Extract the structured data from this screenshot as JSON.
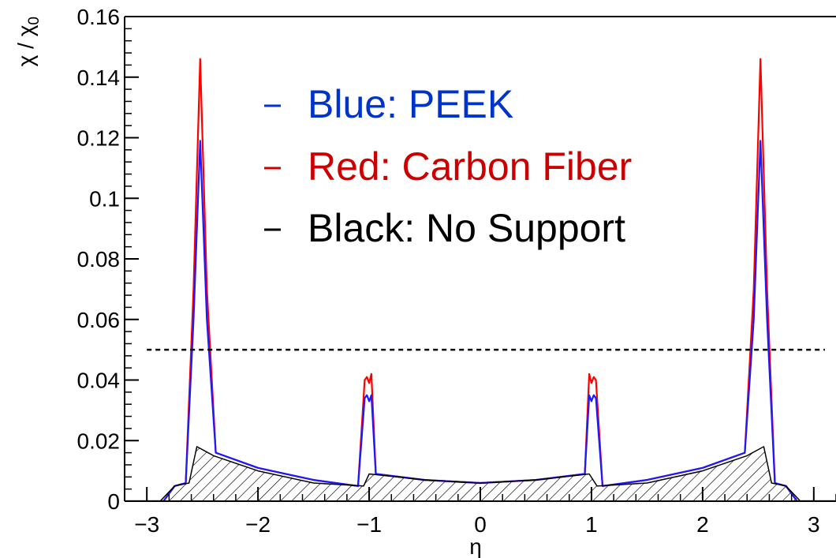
{
  "chart_data": {
    "type": "line",
    "xlabel": "η",
    "ylabel_main": "χ / χ",
    "ylabel_sub": "0",
    "xlim": [
      -3.2,
      3.2
    ],
    "ylim": [
      0,
      0.16
    ],
    "x_ticks": [
      {
        "value": -3,
        "label": "−3"
      },
      {
        "value": -2,
        "label": "−2"
      },
      {
        "value": -1,
        "label": "−1"
      },
      {
        "value": 0,
        "label": "0"
      },
      {
        "value": 1,
        "label": "1"
      },
      {
        "value": 2,
        "label": "2"
      },
      {
        "value": 3,
        "label": "3"
      }
    ],
    "y_ticks": [
      {
        "value": 0,
        "label": "0"
      },
      {
        "value": 0.02,
        "label": "0.02"
      },
      {
        "value": 0.04,
        "label": "0.04"
      },
      {
        "value": 0.06,
        "label": "0.06"
      },
      {
        "value": 0.08,
        "label": "0.08"
      },
      {
        "value": 0.1,
        "label": "0.1"
      },
      {
        "value": 0.12,
        "label": "0.12"
      },
      {
        "value": 0.14,
        "label": "0.14"
      },
      {
        "value": 0.16,
        "label": "0.16"
      }
    ],
    "reference_line": {
      "y": 0.05,
      "style": "dashed",
      "color": "#000000"
    },
    "legend": [
      {
        "label": "Blue: PEEK",
        "color": "#0033cc"
      },
      {
        "label": "Red: Carbon Fiber",
        "color": "#cc0000"
      },
      {
        "label": "Black: No Support",
        "color": "#000000"
      }
    ],
    "series": [
      {
        "name": "Blue: PEEK",
        "color": "#1a1aff",
        "x": [
          -3.2,
          -2.85,
          -2.75,
          -2.65,
          -2.58,
          -2.52,
          -2.46,
          -2.38,
          -2.0,
          -1.5,
          -1.1,
          -1.04,
          -1.02,
          -1.0,
          -0.98,
          -0.94,
          -0.5,
          0,
          0.5,
          0.94,
          0.98,
          1.0,
          1.02,
          1.04,
          1.1,
          1.5,
          2.0,
          2.38,
          2.46,
          2.52,
          2.58,
          2.65,
          2.75,
          2.85,
          3.2
        ],
        "y": [
          0,
          0,
          0.005,
          0.006,
          0.06,
          0.119,
          0.06,
          0.016,
          0.011,
          0.007,
          0.005,
          0.034,
          0.035,
          0.033,
          0.035,
          0.009,
          0.007,
          0.006,
          0.007,
          0.009,
          0.035,
          0.033,
          0.035,
          0.034,
          0.005,
          0.007,
          0.011,
          0.016,
          0.06,
          0.119,
          0.06,
          0.006,
          0.005,
          0,
          0
        ]
      },
      {
        "name": "Red: Carbon Fiber",
        "color": "#ff0000",
        "x": [
          -3.2,
          -2.85,
          -2.75,
          -2.65,
          -2.58,
          -2.52,
          -2.46,
          -2.38,
          -2.0,
          -1.5,
          -1.1,
          -1.04,
          -1.02,
          -1.0,
          -0.98,
          -0.94,
          -0.5,
          0,
          0.5,
          0.94,
          0.98,
          1.0,
          1.02,
          1.04,
          1.1,
          1.5,
          2.0,
          2.38,
          2.46,
          2.52,
          2.58,
          2.65,
          2.75,
          2.85,
          3.2
        ],
        "y": [
          0,
          0,
          0.005,
          0.006,
          0.07,
          0.146,
          0.07,
          0.016,
          0.011,
          0.007,
          0.005,
          0.04,
          0.041,
          0.039,
          0.042,
          0.009,
          0.007,
          0.006,
          0.007,
          0.009,
          0.042,
          0.039,
          0.041,
          0.04,
          0.005,
          0.007,
          0.011,
          0.016,
          0.07,
          0.146,
          0.07,
          0.006,
          0.005,
          0,
          0
        ]
      },
      {
        "name": "Black: No Support",
        "color": "#000000",
        "x": [
          -3.2,
          -2.88,
          -2.75,
          -2.62,
          -2.55,
          -2.4,
          -2.0,
          -1.5,
          -1.05,
          -1.0,
          -0.5,
          0,
          0.5,
          0.98,
          1.05,
          1.5,
          2.0,
          2.4,
          2.55,
          2.62,
          2.75,
          2.88,
          3.2
        ],
        "y": [
          0,
          0,
          0.005,
          0.006,
          0.018,
          0.015,
          0.01,
          0.006,
          0.005,
          0.009,
          0.007,
          0.006,
          0.007,
          0.009,
          0.005,
          0.006,
          0.01,
          0.015,
          0.018,
          0.006,
          0.005,
          0,
          0
        ],
        "hatched": true
      }
    ]
  }
}
